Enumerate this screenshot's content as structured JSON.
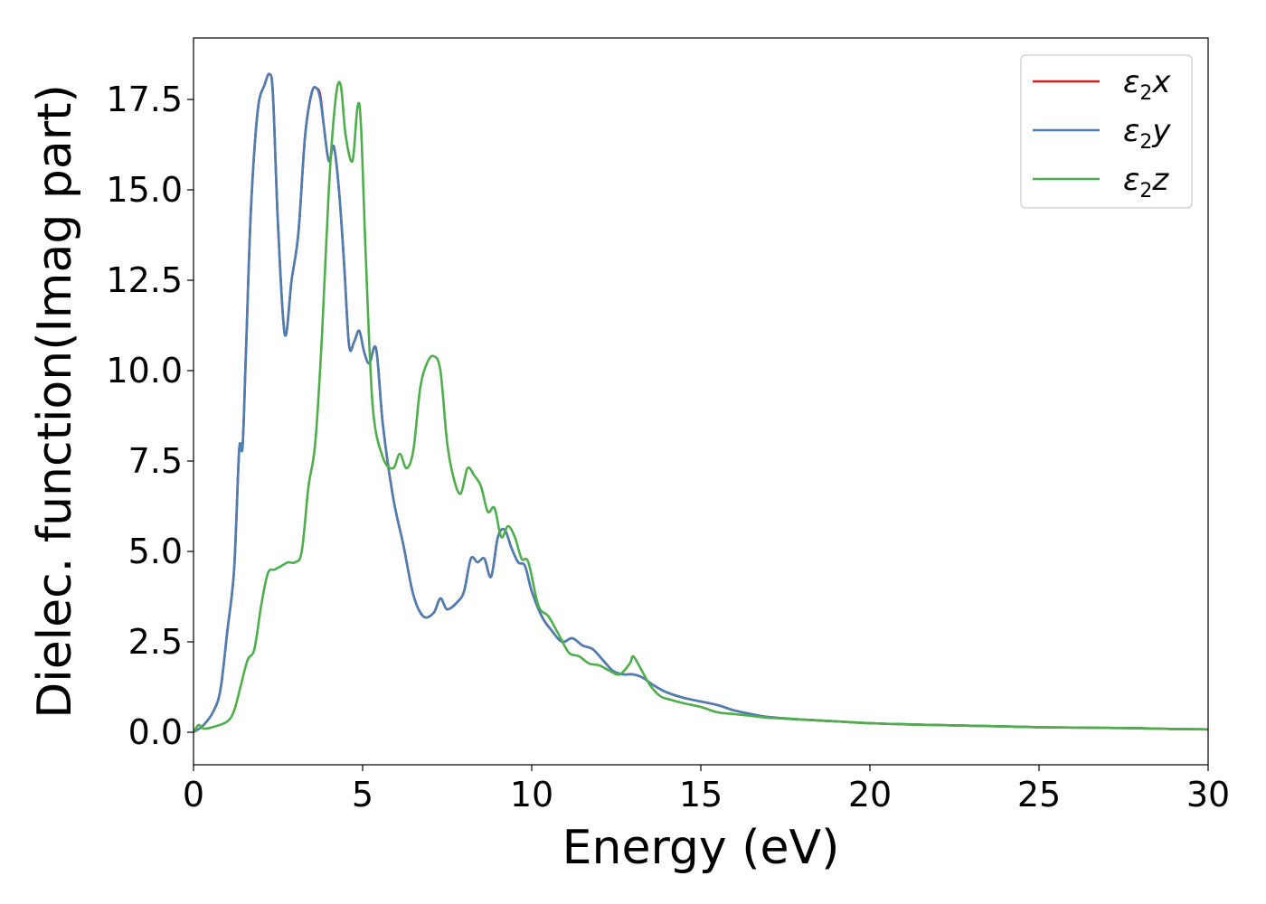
{
  "chart_data": {
    "type": "line",
    "title": "",
    "xlabel": "Energy (eV)",
    "ylabel": "Dielec. function(Imag part)",
    "xlim": [
      0,
      30
    ],
    "ylim": [
      -0.9,
      19.2
    ],
    "xticks": [
      0,
      5,
      10,
      15,
      20,
      25,
      30
    ],
    "xtick_labels": [
      "0",
      "5",
      "10",
      "15",
      "20",
      "25",
      "30"
    ],
    "yticks": [
      0.0,
      2.5,
      5.0,
      7.5,
      10.0,
      12.5,
      15.0,
      17.5
    ],
    "ytick_labels": [
      "0.0",
      "2.5",
      "5.0",
      "7.5",
      "10.0",
      "12.5",
      "15.0",
      "17.5"
    ],
    "grid": false,
    "legend_position": "top-right",
    "series": [
      {
        "name": "ε2x",
        "legend_base": "ε",
        "legend_sub": "2",
        "legend_var": "x",
        "color": "#e41a1c",
        "x": [
          0,
          0.3,
          0.6,
          0.8,
          1.0,
          1.2,
          1.35,
          1.45,
          1.55,
          1.7,
          1.9,
          2.1,
          2.25,
          2.35,
          2.5,
          2.7,
          2.9,
          3.1,
          3.3,
          3.5,
          3.65,
          3.75,
          3.85,
          4.0,
          4.15,
          4.3,
          4.45,
          4.6,
          4.75,
          4.9,
          5.05,
          5.2,
          5.4,
          5.6,
          5.9,
          6.2,
          6.5,
          6.8,
          7.1,
          7.3,
          7.5,
          7.8,
          8.0,
          8.2,
          8.4,
          8.6,
          8.8,
          9.0,
          9.2,
          9.4,
          9.6,
          9.8,
          10.0,
          10.3,
          10.6,
          10.9,
          11.2,
          11.5,
          11.8,
          12.1,
          12.4,
          12.7,
          13.0,
          13.3,
          13.6,
          14.0,
          14.5,
          15.0,
          15.5,
          16.0,
          16.5,
          17.0,
          18.0,
          19.0,
          20.0,
          21.0,
          22.0,
          23.0,
          24.0,
          25.0,
          26.0,
          27.0,
          28.0,
          29.0,
          30.0
        ],
        "y": [
          0.0,
          0.2,
          0.6,
          1.2,
          2.8,
          4.5,
          7.8,
          7.9,
          10.5,
          14.5,
          17.2,
          17.9,
          18.2,
          17.6,
          14.0,
          11.0,
          12.5,
          13.8,
          16.5,
          17.7,
          17.8,
          17.6,
          16.8,
          15.8,
          16.2,
          15.0,
          13.0,
          10.7,
          10.8,
          11.1,
          10.5,
          10.2,
          10.6,
          8.5,
          6.5,
          5.2,
          3.8,
          3.2,
          3.3,
          3.7,
          3.4,
          3.6,
          3.9,
          4.8,
          4.7,
          4.8,
          4.3,
          5.4,
          5.6,
          5.1,
          4.7,
          4.6,
          3.9,
          3.2,
          2.8,
          2.5,
          2.6,
          2.4,
          2.3,
          2.0,
          1.7,
          1.6,
          1.6,
          1.5,
          1.3,
          1.1,
          0.95,
          0.85,
          0.75,
          0.6,
          0.5,
          0.42,
          0.35,
          0.3,
          0.25,
          0.22,
          0.2,
          0.18,
          0.16,
          0.14,
          0.13,
          0.12,
          0.11,
          0.09,
          0.08
        ]
      },
      {
        "name": "ε2y",
        "legend_base": "ε",
        "legend_sub": "2",
        "legend_var": "y",
        "color": "#4a7fb5",
        "x": [
          0,
          0.3,
          0.6,
          0.8,
          1.0,
          1.2,
          1.35,
          1.45,
          1.55,
          1.7,
          1.9,
          2.1,
          2.25,
          2.35,
          2.5,
          2.7,
          2.9,
          3.1,
          3.3,
          3.5,
          3.65,
          3.75,
          3.85,
          4.0,
          4.15,
          4.3,
          4.45,
          4.6,
          4.75,
          4.9,
          5.05,
          5.2,
          5.4,
          5.6,
          5.9,
          6.2,
          6.5,
          6.8,
          7.1,
          7.3,
          7.5,
          7.8,
          8.0,
          8.2,
          8.4,
          8.6,
          8.8,
          9.0,
          9.2,
          9.4,
          9.6,
          9.8,
          10.0,
          10.3,
          10.6,
          10.9,
          11.2,
          11.5,
          11.8,
          12.1,
          12.4,
          12.7,
          13.0,
          13.3,
          13.6,
          14.0,
          14.5,
          15.0,
          15.5,
          16.0,
          16.5,
          17.0,
          18.0,
          19.0,
          20.0,
          21.0,
          22.0,
          23.0,
          24.0,
          25.0,
          26.0,
          27.0,
          28.0,
          29.0,
          30.0
        ],
        "y": [
          0.0,
          0.2,
          0.6,
          1.2,
          2.8,
          4.5,
          7.8,
          7.9,
          10.5,
          14.5,
          17.2,
          17.9,
          18.2,
          17.6,
          14.0,
          11.0,
          12.5,
          13.8,
          16.5,
          17.7,
          17.8,
          17.5,
          16.8,
          15.8,
          16.2,
          15.0,
          13.0,
          10.7,
          10.8,
          11.1,
          10.5,
          10.2,
          10.6,
          8.5,
          6.5,
          5.2,
          3.8,
          3.2,
          3.3,
          3.7,
          3.4,
          3.6,
          3.9,
          4.8,
          4.7,
          4.8,
          4.3,
          5.4,
          5.6,
          5.1,
          4.7,
          4.6,
          3.9,
          3.2,
          2.8,
          2.5,
          2.6,
          2.4,
          2.3,
          2.0,
          1.7,
          1.6,
          1.6,
          1.5,
          1.3,
          1.1,
          0.95,
          0.85,
          0.75,
          0.6,
          0.5,
          0.42,
          0.35,
          0.3,
          0.25,
          0.22,
          0.2,
          0.18,
          0.16,
          0.14,
          0.13,
          0.12,
          0.11,
          0.09,
          0.08
        ]
      },
      {
        "name": "ε2z",
        "legend_base": "ε",
        "legend_sub": "2",
        "legend_var": "z",
        "color": "#4daf4a",
        "x": [
          0,
          0.15,
          0.3,
          0.6,
          1.0,
          1.2,
          1.4,
          1.6,
          1.8,
          2.0,
          2.2,
          2.4,
          2.6,
          2.8,
          3.0,
          3.2,
          3.4,
          3.6,
          3.8,
          4.0,
          4.2,
          4.35,
          4.5,
          4.7,
          4.85,
          4.95,
          5.1,
          5.3,
          5.6,
          5.9,
          6.1,
          6.3,
          6.5,
          6.7,
          6.9,
          7.1,
          7.3,
          7.5,
          7.7,
          7.9,
          8.1,
          8.3,
          8.5,
          8.7,
          8.9,
          9.1,
          9.3,
          9.5,
          9.7,
          9.9,
          10.2,
          10.5,
          10.8,
          11.1,
          11.4,
          11.7,
          12.0,
          12.3,
          12.6,
          12.9,
          13.0,
          13.2,
          13.5,
          13.8,
          14.1,
          14.5,
          15.0,
          15.5,
          16.0,
          16.5,
          17.0,
          18.0,
          19.0,
          20.0,
          21.0,
          22.0,
          23.0,
          24.0,
          25.0,
          26.0,
          27.0,
          28.0,
          29.0,
          30.0
        ],
        "y": [
          0.0,
          0.2,
          0.1,
          0.15,
          0.3,
          0.6,
          1.3,
          2.0,
          2.3,
          3.5,
          4.4,
          4.5,
          4.6,
          4.7,
          4.7,
          5.0,
          6.8,
          8.0,
          11.0,
          15.0,
          17.5,
          17.9,
          16.5,
          15.8,
          17.3,
          16.8,
          13.0,
          9.0,
          7.6,
          7.3,
          7.7,
          7.3,
          7.8,
          9.5,
          10.2,
          10.4,
          10.0,
          8.0,
          7.0,
          6.6,
          7.3,
          7.1,
          6.8,
          6.1,
          6.2,
          5.4,
          5.7,
          5.4,
          4.8,
          4.7,
          3.5,
          3.2,
          2.7,
          2.2,
          2.1,
          1.9,
          1.85,
          1.7,
          1.6,
          1.9,
          2.1,
          1.8,
          1.3,
          1.0,
          0.9,
          0.8,
          0.7,
          0.55,
          0.5,
          0.45,
          0.4,
          0.35,
          0.3,
          0.25,
          0.22,
          0.2,
          0.18,
          0.16,
          0.14,
          0.13,
          0.12,
          0.11,
          0.09,
          0.08
        ]
      }
    ]
  }
}
